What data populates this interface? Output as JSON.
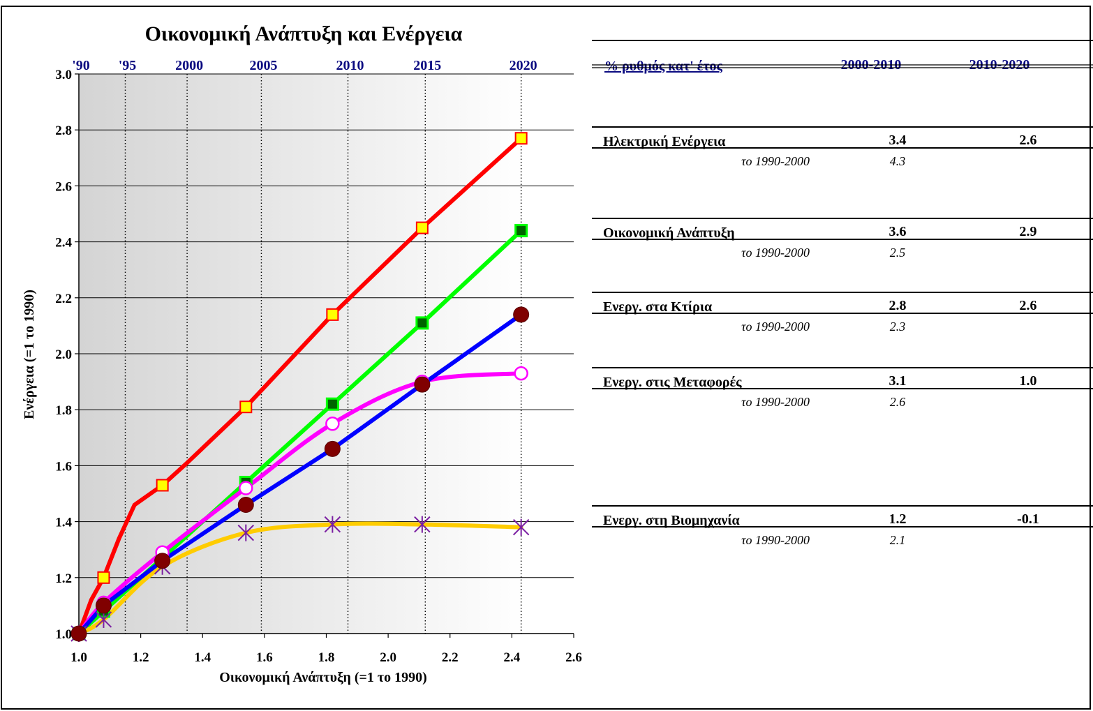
{
  "chart_data": {
    "type": "line",
    "title": "Οικονομική Ανάπτυξη και Ενέργεια",
    "xlabel": "Οικονομική Ανάπτυξη (=1 το 1990)",
    "ylabel": "Ενέργεια (=1 το 1990)",
    "xlim": [
      1.0,
      2.6
    ],
    "ylim": [
      1.0,
      3.0
    ],
    "x_ticks": [
      "1.0",
      "1.2",
      "1.4",
      "1.6",
      "1.8",
      "2.0",
      "2.2",
      "2.4",
      "2.6"
    ],
    "y_ticks": [
      "1.0",
      "1.2",
      "1.4",
      "1.6",
      "1.8",
      "2.0",
      "2.2",
      "2.4",
      "2.6",
      "2.8",
      "3.0"
    ],
    "grid": true,
    "year_axis": [
      {
        "label": "'90",
        "x": 1.0
      },
      {
        "label": "'95",
        "x": 1.15
      },
      {
        "label": "2000",
        "x": 1.35
      },
      {
        "label": "2005",
        "x": 1.59
      },
      {
        "label": "2010",
        "x": 1.87
      },
      {
        "label": "2015",
        "x": 2.12
      },
      {
        "label": "2020",
        "x": 2.43
      }
    ],
    "series": [
      {
        "color": "#ff0000",
        "marker": "square-yellow",
        "smooth": false,
        "points": [
          [
            1.0,
            1.0
          ],
          [
            1.04,
            1.12
          ],
          [
            1.08,
            1.2
          ],
          [
            1.13,
            1.34
          ],
          [
            1.18,
            1.46
          ],
          [
            1.27,
            1.53
          ],
          [
            1.35,
            1.61
          ],
          [
            1.54,
            1.81
          ],
          [
            1.82,
            2.14
          ],
          [
            2.11,
            2.45
          ],
          [
            2.43,
            2.77
          ]
        ]
      },
      {
        "color": "#00ff00",
        "marker": "square-green",
        "smooth": false,
        "points": [
          [
            1.0,
            1.0
          ],
          [
            1.08,
            1.08
          ],
          [
            1.27,
            1.27
          ],
          [
            1.54,
            1.54
          ],
          [
            1.82,
            1.82
          ],
          [
            2.11,
            2.11
          ],
          [
            2.43,
            2.44
          ]
        ]
      },
      {
        "color": "#ff00ff",
        "marker": "circle-open",
        "smooth": true,
        "points": [
          [
            1.0,
            1.0
          ],
          [
            1.08,
            1.11
          ],
          [
            1.27,
            1.29
          ],
          [
            1.54,
            1.52
          ],
          [
            1.82,
            1.75
          ],
          [
            2.11,
            1.9
          ],
          [
            2.43,
            1.93
          ]
        ]
      },
      {
        "color": "#ffcc00",
        "marker": "cross",
        "smooth": true,
        "points": [
          [
            1.0,
            1.0
          ],
          [
            1.08,
            1.05
          ],
          [
            1.27,
            1.24
          ],
          [
            1.54,
            1.36
          ],
          [
            1.82,
            1.39
          ],
          [
            2.11,
            1.39
          ],
          [
            2.43,
            1.38
          ]
        ]
      },
      {
        "color": "#0000ff",
        "marker": "dot-dark",
        "smooth": false,
        "points": [
          [
            1.0,
            1.0
          ],
          [
            1.08,
            1.1
          ],
          [
            1.27,
            1.26
          ],
          [
            1.54,
            1.46
          ],
          [
            1.82,
            1.66
          ],
          [
            2.11,
            1.89
          ],
          [
            2.43,
            2.14
          ]
        ]
      }
    ]
  },
  "table": {
    "header": {
      "label": "% ρυθμός κατ' έτος",
      "col1": "2000-2010",
      "col2": "2010-2020"
    },
    "rows": [
      {
        "name": "Ηλεκτρική Ενέργεια",
        "v1": "3.4",
        "v2": "2.6",
        "sub_label": "το 1990-2000",
        "sub_value": "4.3"
      },
      {
        "name": "Οικονομική Ανάπτυξη",
        "v1": "3.6",
        "v2": "2.9",
        "sub_label": "το 1990-2000",
        "sub_value": "2.5"
      },
      {
        "name": "Ενεργ. στα Κτίρια",
        "v1": "2.8",
        "v2": "2.6",
        "sub_label": "το 1990-2000",
        "sub_value": "2.3"
      },
      {
        "name": "Ενεργ. στις Μεταφορές",
        "v1": "3.1",
        "v2": "1.0",
        "sub_label": "το 1990-2000",
        "sub_value": "2.6"
      },
      {
        "name": "Ενεργ. στη Βιομηχανία",
        "v1": "1.2",
        "v2": "-0.1",
        "sub_label": "το 1990-2000",
        "sub_value": "2.1"
      }
    ]
  }
}
